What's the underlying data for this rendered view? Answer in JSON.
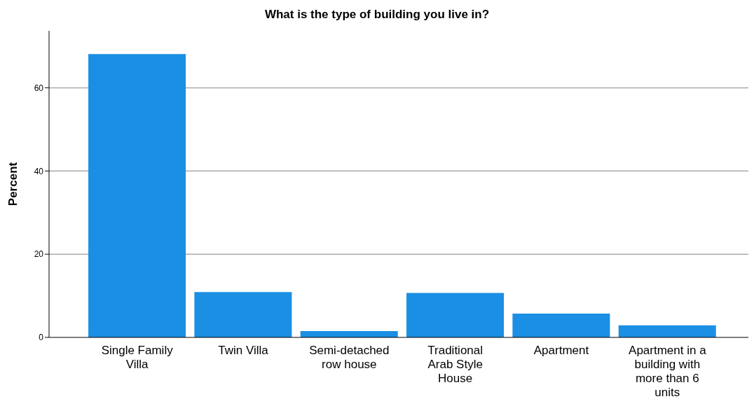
{
  "chart_data": {
    "type": "bar",
    "title": "What is the type of building you live in?",
    "ylabel": "Percent",
    "categories": [
      "Single Family Villa",
      "Twin Villa",
      "Semi-detached row house",
      "Traditional Arab Style House",
      "Apartment",
      "Apartment in a building with more than 6 units"
    ],
    "values": [
      68.1,
      10.9,
      1.5,
      10.7,
      5.7,
      2.9
    ],
    "color": "#1a8fe3",
    "ylim": [
      0,
      73.7
    ],
    "yticks": [
      0,
      20,
      40,
      60
    ],
    "grid": "y"
  }
}
